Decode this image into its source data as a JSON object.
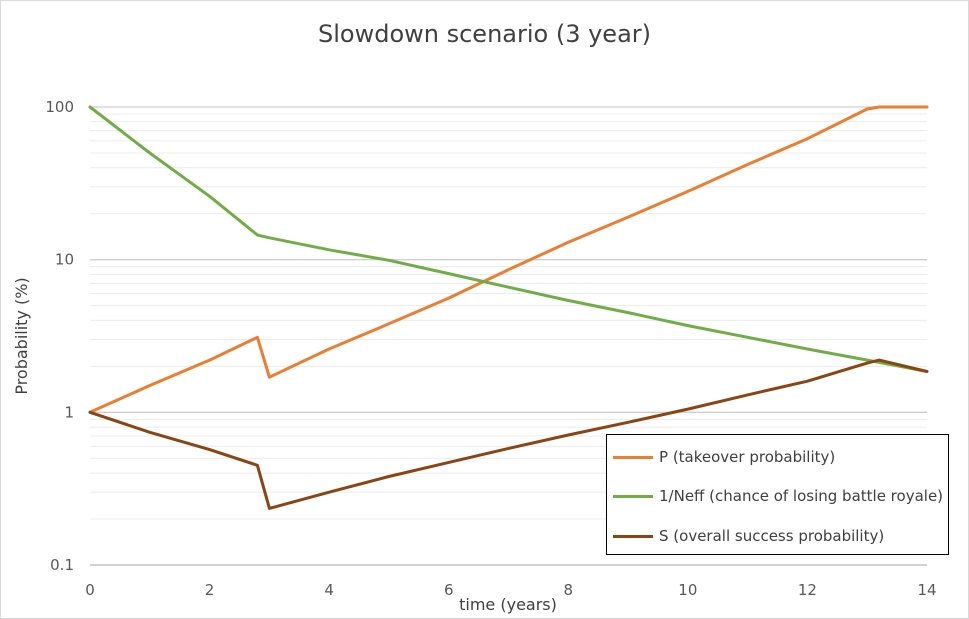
{
  "chart_data": {
    "type": "line",
    "title": "Slowdown scenario (3 year)",
    "xlabel": "time (years)",
    "ylabel": "Probability (%)",
    "xlim": [
      0,
      14
    ],
    "ylim": [
      0.1,
      100
    ],
    "yscale": "log",
    "xticks": [
      "0",
      "2",
      "4",
      "6",
      "8",
      "10",
      "12",
      "14"
    ],
    "yticks": [
      "100",
      "10",
      "1",
      "0.1"
    ],
    "grid": true,
    "legend_position": "bottom-right",
    "series": [
      {
        "name": "P (takeover probability)",
        "color": "#ED7D31",
        "points": [
          [
            0,
            1
          ],
          [
            1,
            1.5
          ],
          [
            2,
            2.2
          ],
          [
            2.8,
            3.1
          ],
          [
            3,
            1.7
          ],
          [
            4,
            2.6
          ],
          [
            5,
            3.8
          ],
          [
            6,
            5.6
          ],
          [
            7,
            8.6
          ],
          [
            8,
            13
          ],
          [
            9,
            19
          ],
          [
            10,
            28
          ],
          [
            11,
            42
          ],
          [
            12,
            62
          ],
          [
            13,
            97
          ],
          [
            13.2,
            100
          ],
          [
            14,
            100
          ]
        ]
      },
      {
        "name": "1/Neff (chance of losing battle royale)",
        "color": "#70AD47",
        "points": [
          [
            0,
            100
          ],
          [
            1,
            50
          ],
          [
            2,
            26
          ],
          [
            2.8,
            14.5
          ],
          [
            3,
            13.9
          ],
          [
            4,
            11.6
          ],
          [
            5,
            9.9
          ],
          [
            6,
            8.1
          ],
          [
            7,
            6.6
          ],
          [
            8,
            5.4
          ],
          [
            9,
            4.5
          ],
          [
            10,
            3.7
          ],
          [
            11,
            3.1
          ],
          [
            12,
            2.6
          ],
          [
            13,
            2.2
          ],
          [
            14,
            1.85
          ]
        ]
      },
      {
        "name": "S (overall success probability)",
        "color": "#8B4513",
        "points": [
          [
            0,
            1
          ],
          [
            1,
            0.74
          ],
          [
            2,
            0.57
          ],
          [
            2.8,
            0.45
          ],
          [
            3,
            0.235
          ],
          [
            4,
            0.3
          ],
          [
            5,
            0.38
          ],
          [
            6,
            0.47
          ],
          [
            7,
            0.58
          ],
          [
            8,
            0.71
          ],
          [
            9,
            0.86
          ],
          [
            10,
            1.05
          ],
          [
            11,
            1.3
          ],
          [
            12,
            1.6
          ],
          [
            13,
            2.1
          ],
          [
            13.2,
            2.2
          ],
          [
            14,
            1.85
          ]
        ]
      }
    ]
  }
}
